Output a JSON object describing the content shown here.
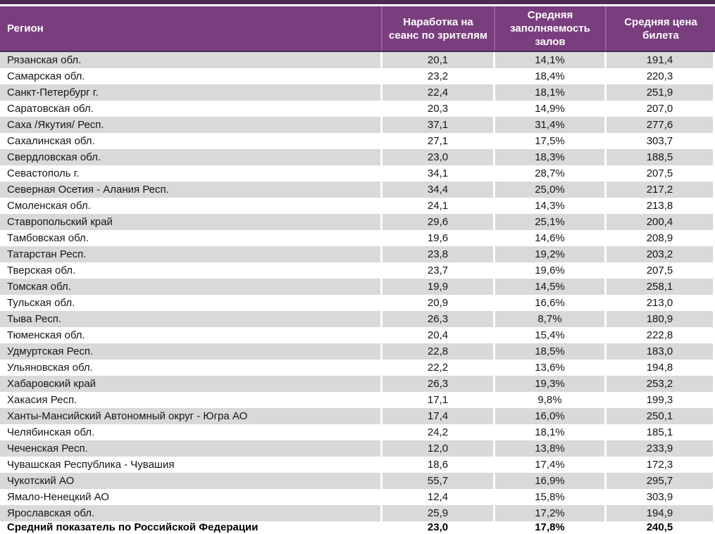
{
  "colors": {
    "top_bar": "#4F2A57",
    "header_background": "#7A3E7E",
    "header_text": "#FFFFFF",
    "header_separator": "#96609B",
    "shaded_row": "#D9D9D9",
    "row_text": "#161616"
  },
  "table": {
    "columns": [
      {
        "label": "Регион"
      },
      {
        "label": "Наработка на сеанс по зрителям"
      },
      {
        "label": "Средняя заполняемость залов"
      },
      {
        "label": "Средняя цена билета"
      }
    ],
    "rows": [
      {
        "region": "Рязанская обл.",
        "per_session_attendance": "20,1",
        "occupancy": "14,1%",
        "ticket_price": "191,4"
      },
      {
        "region": "Самарская обл.",
        "per_session_attendance": "23,2",
        "occupancy": "18,4%",
        "ticket_price": "220,3"
      },
      {
        "region": "Санкт-Петербург г.",
        "per_session_attendance": "22,4",
        "occupancy": "18,1%",
        "ticket_price": "251,9"
      },
      {
        "region": "Саратовская обл.",
        "per_session_attendance": "20,3",
        "occupancy": "14,9%",
        "ticket_price": "207,0"
      },
      {
        "region": "Саха /Якутия/ Респ.",
        "per_session_attendance": "37,1",
        "occupancy": "31,4%",
        "ticket_price": "277,6"
      },
      {
        "region": "Сахалинская обл.",
        "per_session_attendance": "27,1",
        "occupancy": "17,5%",
        "ticket_price": "303,7"
      },
      {
        "region": "Свердловская обл.",
        "per_session_attendance": "23,0",
        "occupancy": "18,3%",
        "ticket_price": "188,5"
      },
      {
        "region": "Севастополь г.",
        "per_session_attendance": "34,1",
        "occupancy": "28,7%",
        "ticket_price": "207,5"
      },
      {
        "region": "Северная Осетия - Алания Респ.",
        "per_session_attendance": "34,4",
        "occupancy": "25,0%",
        "ticket_price": "217,2"
      },
      {
        "region": "Смоленская обл.",
        "per_session_attendance": "24,1",
        "occupancy": "14,3%",
        "ticket_price": "213,8"
      },
      {
        "region": "Ставропольский край",
        "per_session_attendance": "29,6",
        "occupancy": "25,1%",
        "ticket_price": "200,4"
      },
      {
        "region": "Тамбовская обл.",
        "per_session_attendance": "19,6",
        "occupancy": "14,6%",
        "ticket_price": "208,9"
      },
      {
        "region": "Татарстан Респ.",
        "per_session_attendance": "23,8",
        "occupancy": "19,2%",
        "ticket_price": "203,2"
      },
      {
        "region": "Тверская обл.",
        "per_session_attendance": "23,7",
        "occupancy": "19,6%",
        "ticket_price": "207,5"
      },
      {
        "region": "Томская обл.",
        "per_session_attendance": "19,9",
        "occupancy": "14,5%",
        "ticket_price": "258,1"
      },
      {
        "region": "Тульская обл.",
        "per_session_attendance": "20,9",
        "occupancy": "16,6%",
        "ticket_price": "213,0"
      },
      {
        "region": "Тыва Респ.",
        "per_session_attendance": "26,3",
        "occupancy": "8,7%",
        "ticket_price": "180,9"
      },
      {
        "region": "Тюменская обл.",
        "per_session_attendance": "20,4",
        "occupancy": "15,4%",
        "ticket_price": "222,8"
      },
      {
        "region": "Удмуртская Респ.",
        "per_session_attendance": "22,8",
        "occupancy": "18,5%",
        "ticket_price": "183,0"
      },
      {
        "region": "Ульяновская обл.",
        "per_session_attendance": "22,2",
        "occupancy": "13,6%",
        "ticket_price": "194,8"
      },
      {
        "region": "Хабаровский край",
        "per_session_attendance": "26,3",
        "occupancy": "19,3%",
        "ticket_price": "253,2"
      },
      {
        "region": "Хакасия Респ.",
        "per_session_attendance": "17,1",
        "occupancy": "9,8%",
        "ticket_price": "199,3"
      },
      {
        "region": "Ханты-Мансийский Автономный округ - Югра АО",
        "per_session_attendance": "17,4",
        "occupancy": "16,0%",
        "ticket_price": "250,1"
      },
      {
        "region": "Челябинская обл.",
        "per_session_attendance": "24,2",
        "occupancy": "18,1%",
        "ticket_price": "185,1"
      },
      {
        "region": "Чеченская Респ.",
        "per_session_attendance": "12,0",
        "occupancy": "13,8%",
        "ticket_price": "233,9"
      },
      {
        "region": "Чувашская Республика - Чувашия",
        "per_session_attendance": "18,6",
        "occupancy": "17,4%",
        "ticket_price": "172,3"
      },
      {
        "region": "Чукотский АО",
        "per_session_attendance": "55,7",
        "occupancy": "16,9%",
        "ticket_price": "295,7"
      },
      {
        "region": "Ямало-Ненецкий АО",
        "per_session_attendance": "12,4",
        "occupancy": "15,8%",
        "ticket_price": "303,9"
      },
      {
        "region": "Ярославская обл.",
        "per_session_attendance": "25,9",
        "occupancy": "17,2%",
        "ticket_price": "194,9"
      }
    ],
    "total_row": {
      "region": "Средний показатель по Российской Федерации",
      "per_session_attendance": "23,0",
      "occupancy": "17,8%",
      "ticket_price": "240,5"
    }
  }
}
